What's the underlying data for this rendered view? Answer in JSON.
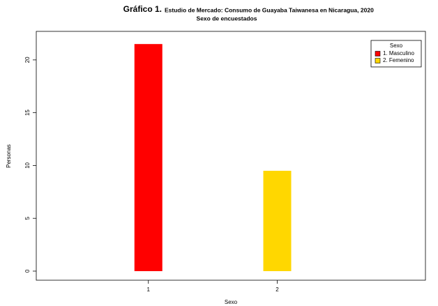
{
  "chart_data": {
    "type": "bar",
    "title_prefix": "Gráfico 1.",
    "title": "Estudio de Mercado: Consumo de Guayaba Taiwanesa en Nicaragua, 2020",
    "subtitle": "Sexo de encuestados",
    "x_label": "Sexo",
    "y_label": "Personas",
    "x": [
      1,
      2
    ],
    "xlim": [
      0.13,
      3.15
    ],
    "xticks": [
      1,
      2
    ],
    "series": [
      {
        "name": "1. Masculino",
        "color": "#ff0000",
        "values": [
          21.5,
          null
        ]
      },
      {
        "name": "2. Femenino",
        "color": "#ffd700",
        "values": [
          null,
          9.5
        ]
      }
    ],
    "legend_title": "Sexo",
    "legend": "top-right",
    "ylim": [
      -0.86,
      22.7
    ],
    "yticks": [
      0,
      5,
      10,
      15,
      20
    ]
  }
}
